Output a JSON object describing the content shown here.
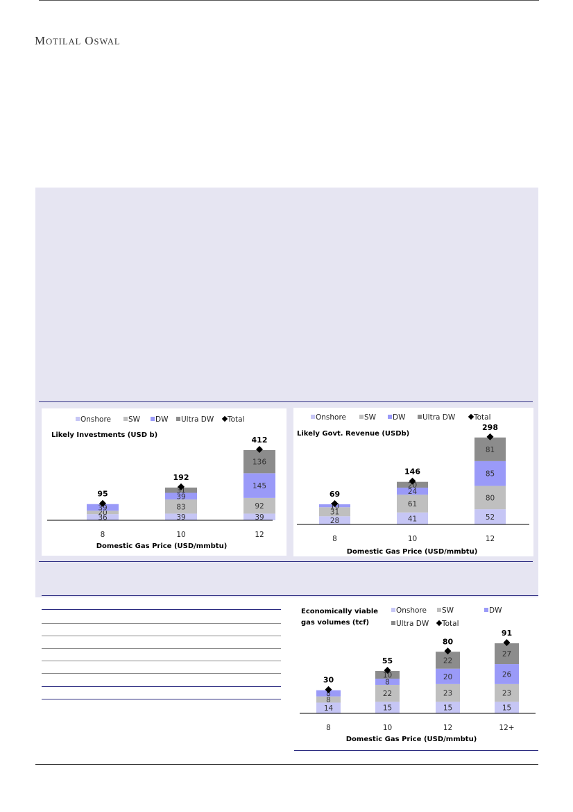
{
  "brand": {
    "first_cap": "M",
    "first_rest": "OTILAL",
    "second_cap": "O",
    "second_rest": "SWAL"
  },
  "colors": {
    "onshore": "#c6c6f5",
    "sw": "#bfbfbf",
    "dw": "#9a9af8",
    "ultra_dw": "#8c8c8c",
    "total": "#000000",
    "panel_bg": "#e6e5f2",
    "rule": "#2a2a80"
  },
  "chart_data": [
    {
      "type": "bar",
      "stacked": true,
      "title": "Likely Investments (USD b)",
      "xlabel": "Domestic Gas Price (USD/mmbtu)",
      "ylabel": "",
      "legend": [
        "Onshore",
        "SW",
        "DW",
        "Ultra DW",
        "Total"
      ],
      "legend_position": "top",
      "categories": [
        "8",
        "10",
        "12"
      ],
      "series": [
        {
          "name": "Onshore",
          "values": [
            36,
            39,
            39
          ]
        },
        {
          "name": "SW",
          "values": [
            20,
            83,
            92
          ]
        },
        {
          "name": "DW",
          "values": [
            39,
            39,
            145
          ]
        },
        {
          "name": "Ultra DW",
          "values": [
            0,
            31,
            136
          ]
        }
      ],
      "total": {
        "name": "Total",
        "values": [
          95,
          192,
          412
        ]
      },
      "ylim": [
        0,
        420
      ],
      "grid": false
    },
    {
      "type": "bar",
      "stacked": true,
      "title": "Likely  Govt. Revenue (USDb)",
      "xlabel": "Domestic Gas Price (USD/mmbtu)",
      "ylabel": "",
      "legend": [
        "Onshore",
        "SW",
        "DW",
        "Ultra DW",
        "Total"
      ],
      "legend_position": "top",
      "categories": [
        "8",
        "10",
        "12"
      ],
      "series": [
        {
          "name": "Onshore",
          "values": [
            28,
            41,
            52
          ]
        },
        {
          "name": "SW",
          "values": [
            31,
            61,
            80
          ]
        },
        {
          "name": "DW",
          "values": [
            10,
            24,
            85
          ]
        },
        {
          "name": "Ultra DW",
          "values": [
            0,
            20,
            81
          ]
        }
      ],
      "total": {
        "name": "Total",
        "values": [
          69,
          146,
          298
        ]
      },
      "ylim": [
        0,
        300
      ],
      "grid": false
    },
    {
      "type": "bar",
      "stacked": true,
      "title": "Economically viable gas volumes (tcf)",
      "title_lines": [
        "Economically viable",
        "gas volumes (tcf)"
      ],
      "xlabel": "Domestic Gas Price (USD/mmbtu)",
      "ylabel": "",
      "legend": [
        "Onshore",
        "SW",
        "DW",
        "Ultra DW",
        "Total"
      ],
      "legend_position": "top",
      "categories": [
        "8",
        "10",
        "12",
        "12+"
      ],
      "series": [
        {
          "name": "Onshore",
          "values": [
            14,
            15,
            15,
            15
          ]
        },
        {
          "name": "SW",
          "values": [
            8,
            22,
            23,
            23
          ]
        },
        {
          "name": "DW",
          "values": [
            8,
            8,
            20,
            26
          ]
        },
        {
          "name": "Ultra DW",
          "values": [
            0,
            10,
            22,
            27
          ]
        }
      ],
      "total": {
        "name": "Total",
        "values": [
          30,
          55,
          80,
          91
        ]
      },
      "ylim": [
        0,
        92
      ],
      "grid": false
    }
  ]
}
